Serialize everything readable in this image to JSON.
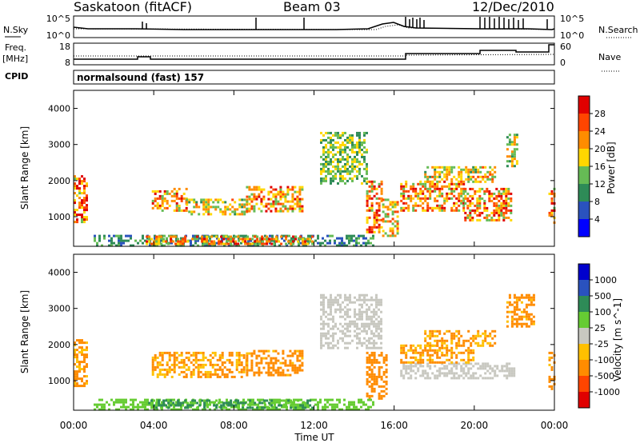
{
  "header": {
    "station": "Saskatoon (fitACF)",
    "beam": "Beam 03",
    "date": "12/Dec/2010",
    "cpid_label": "CPID",
    "cpid_value": "normalsound (fast) 157"
  },
  "noise_panel": {
    "left_label": "N.Sky",
    "left_ticks": [
      "10^5",
      "10^0"
    ],
    "right_ticks": [
      "10^5",
      "10^0"
    ],
    "right_label": "N.Search"
  },
  "freq_panel": {
    "left_label_1": "Freq.",
    "left_label_2": "[MHz]",
    "left_ticks": [
      "18",
      "8"
    ],
    "right_ticks": [
      "60",
      "0"
    ],
    "right_label": "Nave"
  },
  "chart_data": [
    {
      "type": "heatmap",
      "parameter": "Power",
      "ylabel": "Slant Range [km]",
      "xlabel": "",
      "ylim": [
        180,
        4500
      ],
      "yticks": [
        "1000",
        "2000",
        "3000",
        "4000"
      ],
      "colorbar": {
        "label": "Power [dB]",
        "ticks": [
          "28",
          "24",
          "20",
          "16",
          "12",
          "8",
          "4"
        ],
        "range": [
          0,
          32
        ],
        "colors": [
          "#0000ff",
          "#2a52be",
          "#2e8b57",
          "#66bb55",
          "#ffd700",
          "#ff8c00",
          "#ff4500",
          "#e00000"
        ]
      },
      "regions": [
        {
          "t0": 0.0,
          "t1": 0.7,
          "r0": 850,
          "r1": 2150,
          "v": 24
        },
        {
          "t0": 3.9,
          "t1": 5.6,
          "r0": 1150,
          "r1": 1800,
          "v": 22
        },
        {
          "t0": 5.6,
          "t1": 8.6,
          "r0": 1050,
          "r1": 1500,
          "v": 18
        },
        {
          "t0": 8.6,
          "t1": 11.4,
          "r0": 1150,
          "r1": 1850,
          "v": 22
        },
        {
          "t0": 12.3,
          "t1": 14.6,
          "r0": 1900,
          "r1": 3350,
          "v": 14
        },
        {
          "t0": 14.6,
          "t1": 15.4,
          "r0": 600,
          "r1": 2000,
          "v": 24
        },
        {
          "t0": 15.4,
          "t1": 16.2,
          "r0": 450,
          "r1": 1500,
          "v": 20
        },
        {
          "t0": 16.3,
          "t1": 19.5,
          "r0": 1200,
          "r1": 2000,
          "v": 22
        },
        {
          "t0": 19.5,
          "t1": 21.8,
          "r0": 900,
          "r1": 1800,
          "v": 22
        },
        {
          "t0": 17.5,
          "t1": 21.0,
          "r0": 2000,
          "r1": 2400,
          "v": 18
        },
        {
          "t0": 21.6,
          "t1": 22.1,
          "r0": 2400,
          "r1": 3300,
          "v": 16
        },
        {
          "t0": 23.7,
          "t1": 24.0,
          "r0": 800,
          "r1": 1800,
          "v": 24
        },
        {
          "t0": 1.0,
          "t1": 15.0,
          "r0": 200,
          "r1": 500,
          "v": 10
        },
        {
          "t0": 3.6,
          "t1": 11.9,
          "r0": 240,
          "r1": 480,
          "v": 22
        }
      ]
    },
    {
      "type": "heatmap",
      "parameter": "Velocity",
      "ylabel": "Slant Range [km]",
      "xlabel": "Time UT",
      "ylim": [
        180,
        4500
      ],
      "yticks": [
        "1000",
        "2000",
        "3000",
        "4000"
      ],
      "xticks": [
        "00:00",
        "04:00",
        "08:00",
        "12:00",
        "16:00",
        "20:00",
        "00:00"
      ],
      "colorbar": {
        "label": "Velocity [m s^-1]",
        "ticks": [
          "1000",
          "500",
          "100",
          "25",
          "-25",
          "-100",
          "-500",
          "-1000"
        ],
        "colors": [
          "#e00000",
          "#ff4500",
          "#ff8c00",
          "#ffc000",
          "#c8c8c0",
          "#66cc33",
          "#2e8b57",
          "#2a52be",
          "#0000cd"
        ]
      },
      "regions": [
        {
          "t0": 0.0,
          "t1": 0.7,
          "r0": 850,
          "r1": 2150,
          "v": -120
        },
        {
          "t0": 3.9,
          "t1": 8.6,
          "r0": 1100,
          "r1": 1800,
          "v": -110
        },
        {
          "t0": 8.6,
          "t1": 11.4,
          "r0": 1150,
          "r1": 1850,
          "v": -150
        },
        {
          "t0": 12.3,
          "t1": 15.3,
          "r0": 1900,
          "r1": 3400,
          "v": 0
        },
        {
          "t0": 14.6,
          "t1": 15.6,
          "r0": 500,
          "r1": 1800,
          "v": -300
        },
        {
          "t0": 16.3,
          "t1": 22.0,
          "r0": 1100,
          "r1": 1500,
          "v": 0
        },
        {
          "t0": 16.3,
          "t1": 20.0,
          "r0": 1500,
          "r1": 2000,
          "v": -120
        },
        {
          "t0": 17.5,
          "t1": 21.0,
          "r0": 2000,
          "r1": 2400,
          "v": -110
        },
        {
          "t0": 21.6,
          "t1": 23.0,
          "r0": 2500,
          "r1": 3400,
          "v": -150
        },
        {
          "t0": 23.7,
          "t1": 24.0,
          "r0": 800,
          "r1": 1800,
          "v": -150
        },
        {
          "t0": 1.0,
          "t1": 15.0,
          "r0": 200,
          "r1": 500,
          "v": 60
        },
        {
          "t0": 3.6,
          "t1": 11.9,
          "r0": 240,
          "r1": 480,
          "v": 120
        }
      ]
    }
  ]
}
